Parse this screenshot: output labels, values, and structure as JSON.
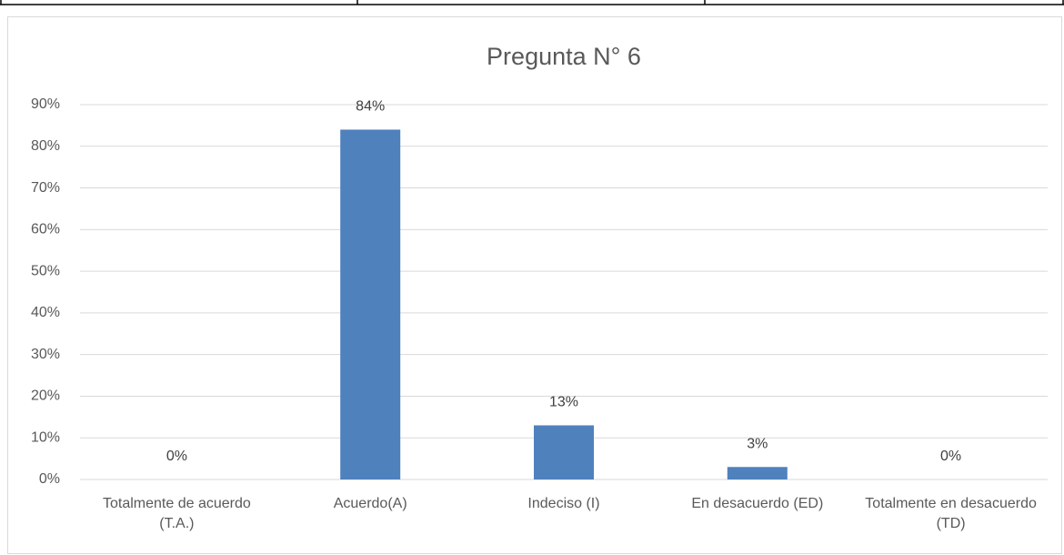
{
  "chart_data": {
    "type": "bar",
    "title": "Pregunta N° 6",
    "categories": [
      "Totalmente de acuerdo (T.A.)",
      "Acuerdo(A)",
      "Indeciso (I)",
      "En desacuerdo (ED)",
      "Totalmente en desacuerdo  (TD)"
    ],
    "values": [
      0,
      84,
      13,
      3,
      0
    ],
    "value_labels": [
      "0%",
      "84%",
      "13%",
      "3%",
      "0%"
    ],
    "color": "#4f81bd",
    "ylim": [
      0,
      90
    ],
    "yticks": [
      {
        "value": 0,
        "label": "0%"
      },
      {
        "value": 10,
        "label": "10%"
      },
      {
        "value": 20,
        "label": "20%"
      },
      {
        "value": 30,
        "label": "30%"
      },
      {
        "value": 40,
        "label": "40%"
      },
      {
        "value": 50,
        "label": "50%"
      },
      {
        "value": 60,
        "label": "60%"
      },
      {
        "value": 70,
        "label": "70%"
      },
      {
        "value": 80,
        "label": "80%"
      },
      {
        "value": 90,
        "label": "90%"
      }
    ],
    "grid": true
  }
}
